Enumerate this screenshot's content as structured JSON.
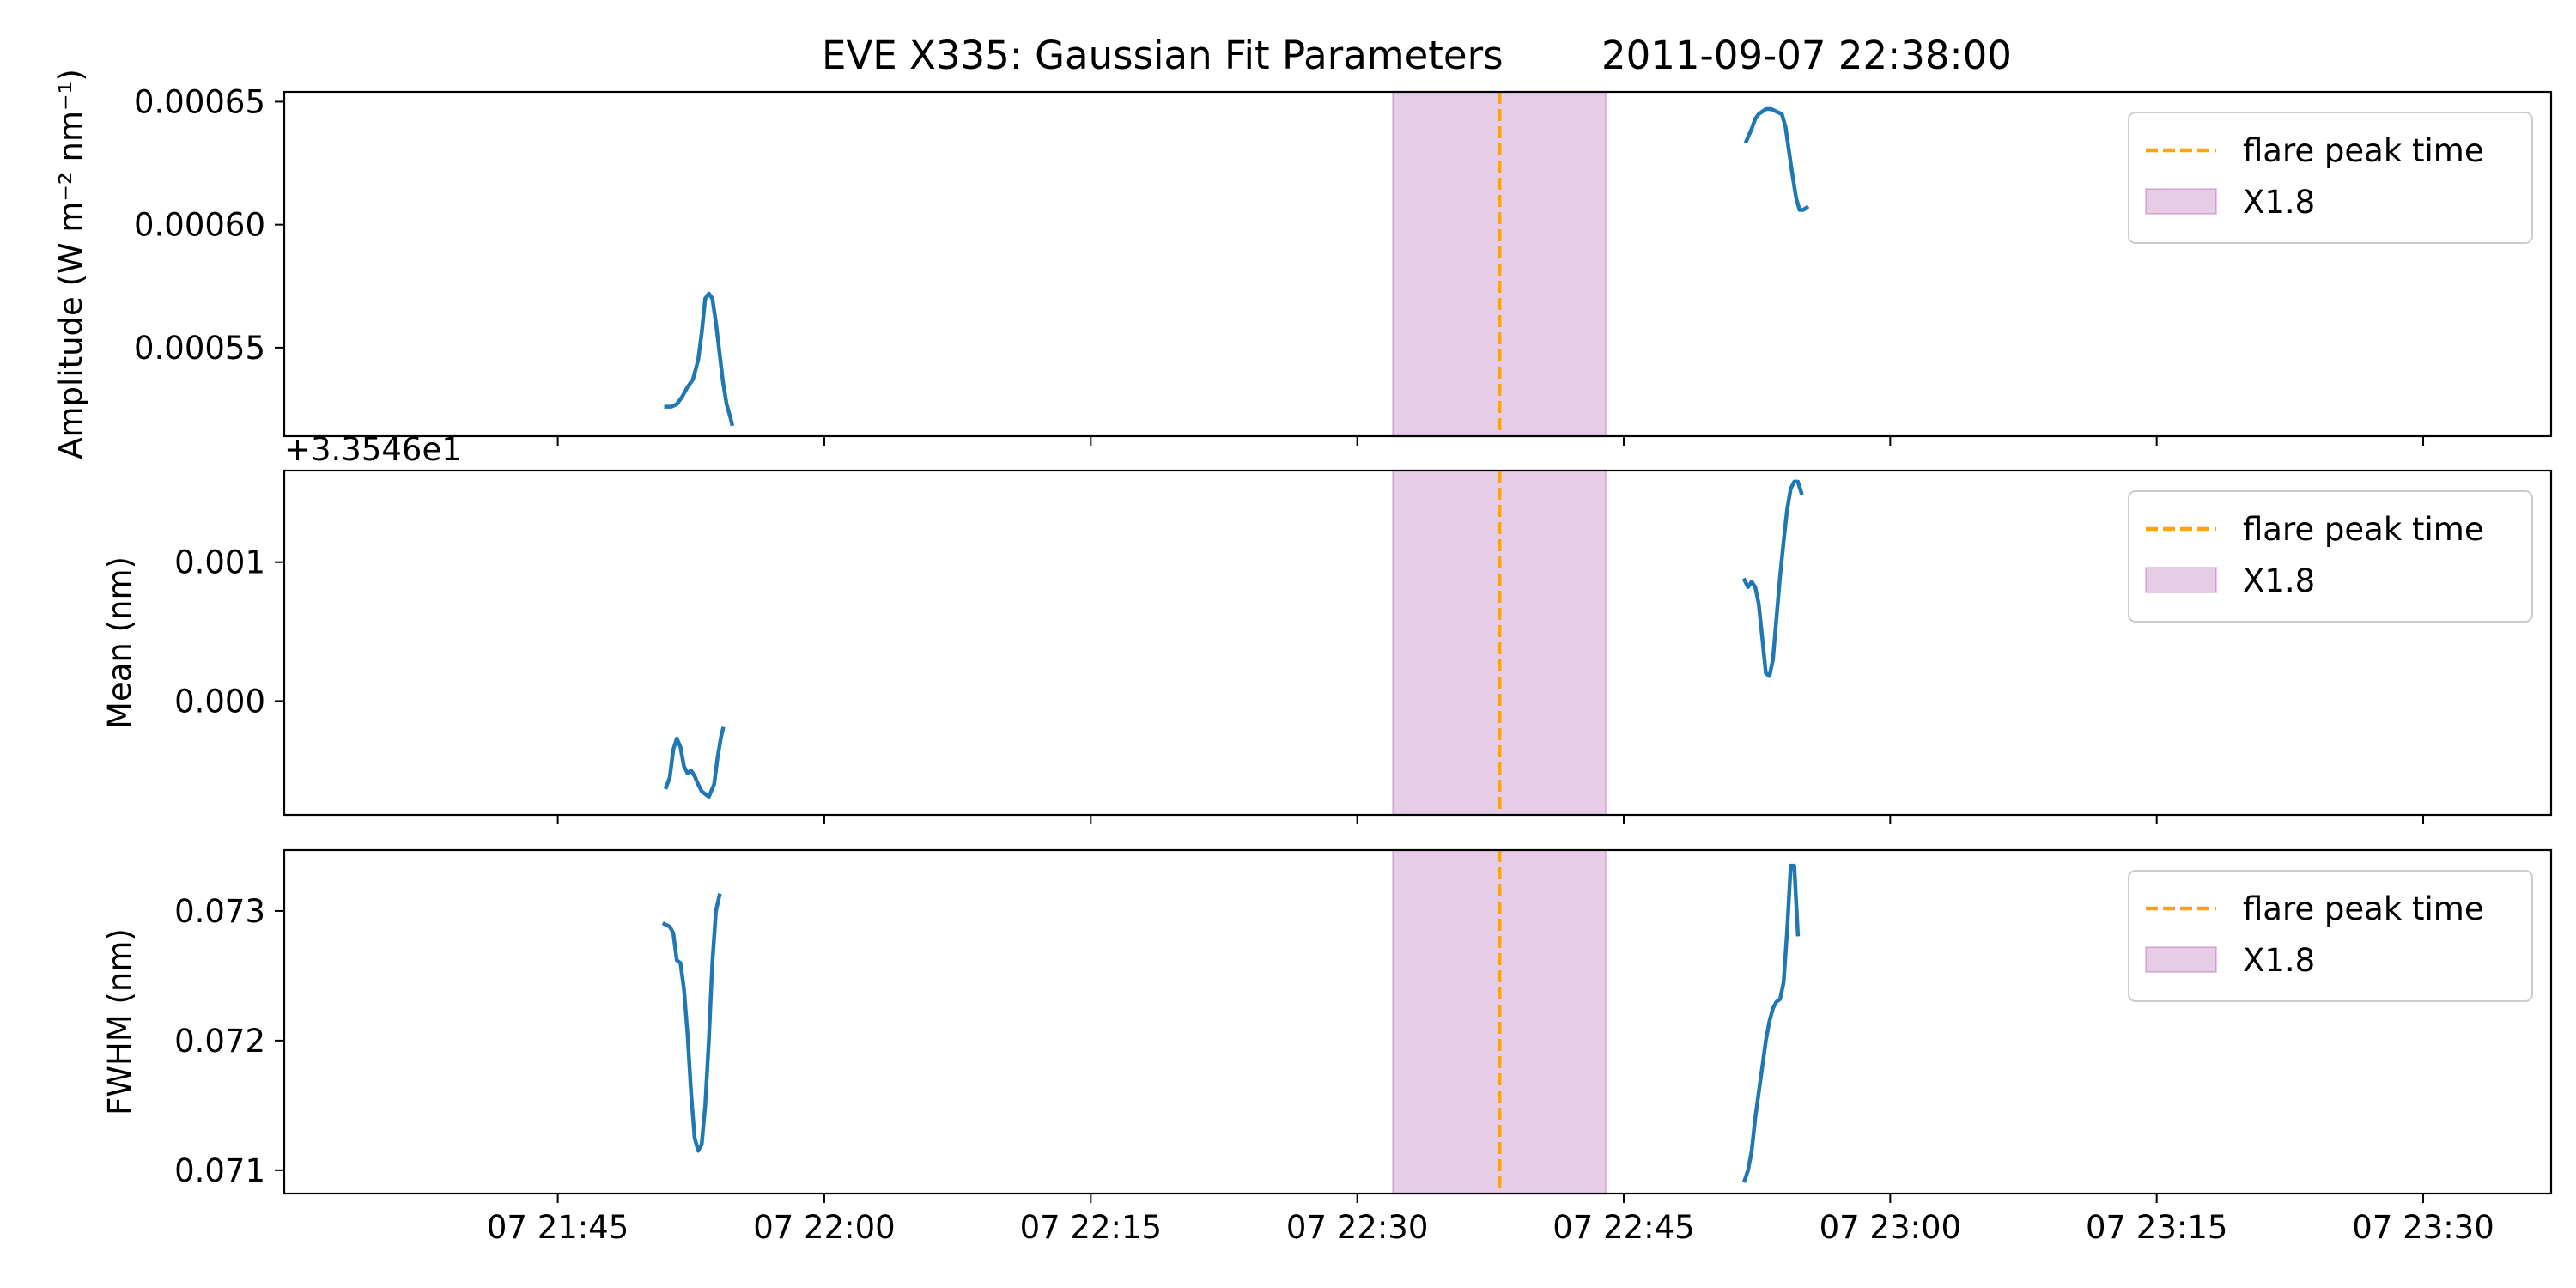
{
  "title": "EVE X335: Gaussian Fit Parameters        2011-09-07 22:38:00",
  "x_tick_labels": [
    "07 21:45",
    "07 22:00",
    "07 22:15",
    "07 22:30",
    "07 22:45",
    "07 23:00",
    "07 23:15",
    "07 23:30"
  ],
  "x_axis_type": "datetime (minutes after 2011-09-07 21:45)",
  "flare": {
    "peak_minute": 53,
    "start_minute": 47,
    "end_minute": 59,
    "class_label": "X1.8",
    "peak_label": "flare peak time",
    "peak_color": "#ffa500",
    "band_color": "#800080"
  },
  "series_color": "#1f77b4",
  "legend_position": "upper right",
  "chart_data": [
    {
      "type": "line",
      "ylabel": "Amplitude (W m⁻² nm⁻¹)",
      "ylim": [
        0.000514,
        0.000654
      ],
      "y_ticks": [
        0.00055,
        0.0006,
        0.00065
      ],
      "y_tick_labels": [
        "0.00055",
        "0.00060",
        "0.00065"
      ],
      "offset_text": "",
      "segments": [
        [
          [
            6.1,
            0.000526
          ],
          [
            6.4,
            0.000526
          ],
          [
            6.7,
            0.000527
          ],
          [
            7.0,
            0.00053
          ],
          [
            7.3,
            0.000534
          ],
          [
            7.6,
            0.000537
          ],
          [
            7.9,
            0.000545
          ],
          [
            8.1,
            0.000556
          ],
          [
            8.3,
            0.00057
          ],
          [
            8.5,
            0.000572
          ],
          [
            8.7,
            0.00057
          ],
          [
            8.9,
            0.00056
          ],
          [
            9.1,
            0.000548
          ],
          [
            9.3,
            0.000536
          ],
          [
            9.5,
            0.000527
          ],
          [
            9.7,
            0.000522
          ],
          [
            9.8,
            0.000519
          ]
        ],
        [
          [
            66.9,
            0.000634
          ],
          [
            67.2,
            0.000639
          ],
          [
            67.4,
            0.000643
          ],
          [
            67.6,
            0.000645
          ],
          [
            67.8,
            0.000646
          ],
          [
            68.0,
            0.000647
          ],
          [
            68.3,
            0.000647
          ],
          [
            68.6,
            0.000646
          ],
          [
            68.9,
            0.000645
          ],
          [
            69.1,
            0.00064
          ],
          [
            69.3,
            0.00063
          ],
          [
            69.5,
            0.00062
          ],
          [
            69.7,
            0.000611
          ],
          [
            69.9,
            0.000606
          ],
          [
            70.1,
            0.000606
          ],
          [
            70.3,
            0.000607
          ]
        ]
      ]
    },
    {
      "type": "line",
      "ylabel": "Mean (nm)",
      "ylim": [
        -0.00082,
        0.00166
      ],
      "y_ticks": [
        0.0,
        0.001
      ],
      "y_tick_labels": [
        "0.000",
        "0.001"
      ],
      "offset_text": "+3.3546e1",
      "segments": [
        [
          [
            6.1,
            -0.00062
          ],
          [
            6.3,
            -0.00055
          ],
          [
            6.5,
            -0.00035
          ],
          [
            6.7,
            -0.00027
          ],
          [
            6.9,
            -0.00033
          ],
          [
            7.1,
            -0.00047
          ],
          [
            7.3,
            -0.00052
          ],
          [
            7.5,
            -0.0005
          ],
          [
            7.7,
            -0.00054
          ],
          [
            7.9,
            -0.0006
          ],
          [
            8.1,
            -0.00065
          ],
          [
            8.3,
            -0.00067
          ],
          [
            8.5,
            -0.00069
          ],
          [
            8.8,
            -0.0006
          ],
          [
            9.0,
            -0.0004
          ],
          [
            9.2,
            -0.00025
          ],
          [
            9.3,
            -0.0002
          ]
        ],
        [
          [
            66.8,
            0.00087
          ],
          [
            67.0,
            0.00082
          ],
          [
            67.2,
            0.00086
          ],
          [
            67.4,
            0.00082
          ],
          [
            67.6,
            0.0007
          ],
          [
            67.8,
            0.00045
          ],
          [
            68.0,
            0.0002
          ],
          [
            68.2,
            0.00018
          ],
          [
            68.4,
            0.0003
          ],
          [
            68.6,
            0.0006
          ],
          [
            68.8,
            0.0009
          ],
          [
            69.0,
            0.00115
          ],
          [
            69.2,
            0.00138
          ],
          [
            69.4,
            0.00153
          ],
          [
            69.6,
            0.00158
          ],
          [
            69.8,
            0.00158
          ],
          [
            70.0,
            0.0015
          ]
        ]
      ]
    },
    {
      "type": "line",
      "ylabel": "FWHM (nm)",
      "ylim": [
        0.07082,
        0.07347
      ],
      "y_ticks": [
        0.071,
        0.072,
        0.073
      ],
      "y_tick_labels": [
        "0.071",
        "0.072",
        "0.073"
      ],
      "offset_text": "",
      "segments": [
        [
          [
            6.0,
            0.0729
          ],
          [
            6.3,
            0.07288
          ],
          [
            6.5,
            0.07283
          ],
          [
            6.7,
            0.07262
          ],
          [
            6.9,
            0.0726
          ],
          [
            7.1,
            0.0724
          ],
          [
            7.3,
            0.07205
          ],
          [
            7.5,
            0.0716
          ],
          [
            7.7,
            0.07125
          ],
          [
            7.9,
            0.07115
          ],
          [
            8.1,
            0.0712
          ],
          [
            8.3,
            0.0715
          ],
          [
            8.5,
            0.072
          ],
          [
            8.7,
            0.0726
          ],
          [
            8.9,
            0.073
          ],
          [
            9.1,
            0.07312
          ]
        ],
        [
          [
            66.8,
            0.07092
          ],
          [
            67.0,
            0.071
          ],
          [
            67.2,
            0.07115
          ],
          [
            67.4,
            0.0714
          ],
          [
            67.6,
            0.0716
          ],
          [
            67.8,
            0.0718
          ],
          [
            68.0,
            0.072
          ],
          [
            68.2,
            0.07215
          ],
          [
            68.4,
            0.07225
          ],
          [
            68.6,
            0.0723
          ],
          [
            68.8,
            0.07232
          ],
          [
            69.0,
            0.07245
          ],
          [
            69.2,
            0.07285
          ],
          [
            69.4,
            0.07335
          ],
          [
            69.6,
            0.07335
          ],
          [
            69.8,
            0.07282
          ]
        ]
      ]
    }
  ]
}
